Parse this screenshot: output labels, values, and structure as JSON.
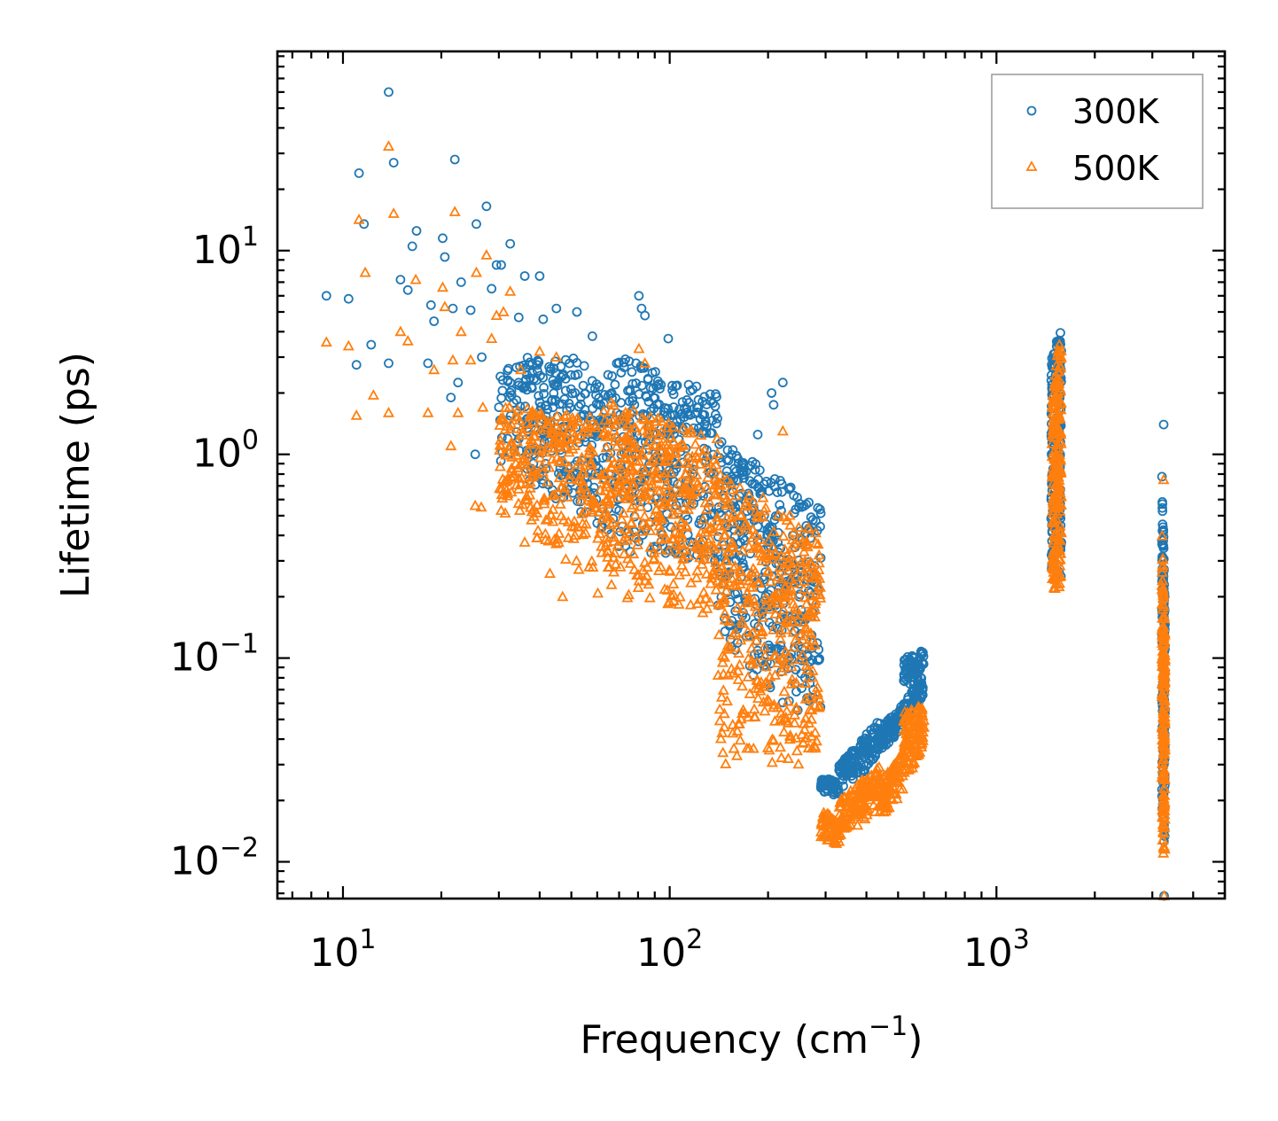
{
  "chart_data": {
    "type": "scatter",
    "title": "",
    "xscale": "log",
    "yscale": "log",
    "xlabel": "Frequency (cm",
    "xlabel_sup": "−1",
    "xlabel_suffix": ")",
    "ylabel": "Lifetime (ps)",
    "xlim": [
      6.3,
      5000
    ],
    "ylim": [
      0.0066,
      95
    ],
    "x_ticks": [
      {
        "value": 10,
        "base": "10",
        "exp": "1"
      },
      {
        "value": 100,
        "base": "10",
        "exp": "2"
      },
      {
        "value": 1000,
        "base": "10",
        "exp": "3"
      }
    ],
    "y_ticks": [
      {
        "value": 0.01,
        "base": "10",
        "exp": "−2"
      },
      {
        "value": 0.1,
        "base": "10",
        "exp": "−1"
      },
      {
        "value": 1,
        "base": "10",
        "exp": "0"
      },
      {
        "value": 10,
        "base": "10",
        "exp": "1"
      }
    ],
    "legend_position": "top-right",
    "series": [
      {
        "name": "300K",
        "marker": "circle",
        "color": "#1f77b4",
        "points": [
          [
            8.9,
            6.0
          ],
          [
            10.4,
            5.8
          ],
          [
            11.0,
            2.75
          ],
          [
            11.2,
            24.0
          ],
          [
            11.6,
            13.5
          ],
          [
            12.2,
            3.45
          ],
          [
            13.8,
            2.8
          ],
          [
            13.8,
            60.0
          ],
          [
            14.3,
            27.0
          ],
          [
            15.0,
            7.2
          ],
          [
            15.8,
            6.4
          ],
          [
            16.3,
            10.5
          ],
          [
            16.8,
            12.5
          ],
          [
            18.2,
            2.8
          ],
          [
            18.6,
            5.4
          ],
          [
            19.0,
            4.5
          ],
          [
            20.2,
            11.5
          ],
          [
            20.5,
            9.3
          ],
          [
            21.4,
            1.9
          ],
          [
            21.7,
            5.2
          ],
          [
            22.0,
            28.0
          ],
          [
            22.5,
            2.25
          ],
          [
            23.0,
            7.0
          ],
          [
            24.6,
            5.1
          ],
          [
            25.4,
            1.0
          ],
          [
            25.6,
            13.5
          ],
          [
            26.6,
            3.0
          ],
          [
            27.5,
            16.5
          ],
          [
            28.5,
            6.5
          ],
          [
            29.5,
            8.5
          ],
          [
            30.5,
            8.5
          ],
          [
            32.5,
            10.8
          ],
          [
            34.5,
            4.7
          ],
          [
            36.0,
            7.5
          ],
          [
            40.0,
            7.5
          ],
          [
            41.0,
            4.6
          ],
          [
            45.0,
            5.2
          ],
          [
            52.0,
            5.0
          ],
          [
            58.0,
            3.8
          ],
          [
            68.0,
            2.2
          ],
          [
            80.5,
            6.0
          ],
          [
            82.0,
            5.2
          ],
          [
            84.0,
            4.8
          ],
          [
            99.0,
            3.7
          ],
          [
            140.0,
            1.5
          ],
          [
            186.0,
            1.25
          ],
          [
            205.0,
            2.0
          ],
          [
            208.0,
            1.75
          ],
          [
            222.0,
            2.25
          ],
          [
            280.0,
            0.47
          ],
          [
            290.0,
            0.31
          ],
          [
            3250.0,
            1.4
          ],
          [
            3260.0,
            0.0068
          ]
        ],
        "bands": [
          {
            "x": [
              30,
              60
            ],
            "y_upper": [
              3.0,
              3.0
            ],
            "y_lower": [
              0.9,
              0.45
            ],
            "count": 260
          },
          {
            "x": [
              60,
              140
            ],
            "y_upper": [
              3.3,
              2.0
            ],
            "y_lower": [
              0.35,
              0.28
            ],
            "count": 380
          },
          {
            "x": [
              140,
              290
            ],
            "y_upper": [
              1.2,
              0.55
            ],
            "y_lower": [
              0.12,
              0.04
            ],
            "count": 380
          },
          {
            "x": [
              290,
              330
            ],
            "y_upper": [
              0.026,
              0.025
            ],
            "y_lower": [
              0.022,
              0.021
            ],
            "count": 60
          },
          {
            "x": [
              330,
              440
            ],
            "y_upper": [
              0.03,
              0.05
            ],
            "y_lower": [
              0.022,
              0.032
            ],
            "count": 140
          },
          {
            "x": [
              440,
              520
            ],
            "y_upper": [
              0.045,
              0.06
            ],
            "y_lower": [
              0.035,
              0.045
            ],
            "count": 100
          },
          {
            "x": [
              520,
              600
            ],
            "y_upper": [
              0.1,
              0.11
            ],
            "y_lower": [
              0.05,
              0.065
            ],
            "count": 120
          },
          {
            "x": [
              1470,
              1580
            ],
            "y_upper": [
              2.9,
              4.6
            ],
            "y_lower": [
              0.25,
              0.25
            ],
            "count": 220
          },
          {
            "x": [
              3210,
              3280
            ],
            "y_upper": [
              0.9,
              0.2
            ],
            "y_lower": [
              0.012,
              0.012
            ],
            "count": 180
          }
        ]
      },
      {
        "name": "500K",
        "marker": "triangle",
        "color": "#ff7f0e",
        "points": [
          [
            8.9,
            3.55
          ],
          [
            10.4,
            3.4
          ],
          [
            11.0,
            1.55
          ],
          [
            11.2,
            14.2
          ],
          [
            11.7,
            7.8
          ],
          [
            12.4,
            1.95
          ],
          [
            13.8,
            1.6
          ],
          [
            13.8,
            32.5
          ],
          [
            14.3,
            15.2
          ],
          [
            15.0,
            4.0
          ],
          [
            15.8,
            3.6
          ],
          [
            16.7,
            7.2
          ],
          [
            18.2,
            1.6
          ],
          [
            19.0,
            2.6
          ],
          [
            20.2,
            6.6
          ],
          [
            20.5,
            5.3
          ],
          [
            21.4,
            1.1
          ],
          [
            21.7,
            2.9
          ],
          [
            22.0,
            15.5
          ],
          [
            22.5,
            1.6
          ],
          [
            23.0,
            4.0
          ],
          [
            24.6,
            2.9
          ],
          [
            25.6,
            7.8
          ],
          [
            26.8,
            1.7
          ],
          [
            27.5,
            9.5
          ],
          [
            28.5,
            3.7
          ],
          [
            29.5,
            4.8
          ],
          [
            31.0,
            5.0
          ],
          [
            32.5,
            6.3
          ],
          [
            35.0,
            2.6
          ],
          [
            40.0,
            3.2
          ],
          [
            45.0,
            3.0
          ],
          [
            25.4,
            0.56
          ],
          [
            26.5,
            0.55
          ],
          [
            30.5,
            0.53
          ],
          [
            36.0,
            0.37
          ],
          [
            43.0,
            0.26
          ],
          [
            47.0,
            0.2
          ],
          [
            80.5,
            3.3
          ],
          [
            84.0,
            2.8
          ],
          [
            222.0,
            1.3
          ],
          [
            280.0,
            0.26
          ],
          [
            3250.0,
            0.75
          ],
          [
            3260.0,
            0.0068
          ]
        ],
        "bands": [
          {
            "x": [
              30,
              60
            ],
            "y_upper": [
              1.8,
              1.5
            ],
            "y_lower": [
              0.5,
              0.23
            ],
            "count": 260
          },
          {
            "x": [
              60,
              140
            ],
            "y_upper": [
              1.9,
              1.2
            ],
            "y_lower": [
              0.19,
              0.16
            ],
            "count": 420
          },
          {
            "x": [
              140,
              290
            ],
            "y_upper": [
              0.9,
              0.4
            ],
            "y_lower": [
              0.03,
              0.03
            ],
            "count": 420
          },
          {
            "x": [
              290,
              330
            ],
            "y_upper": [
              0.018,
              0.016
            ],
            "y_lower": [
              0.013,
              0.012
            ],
            "count": 60
          },
          {
            "x": [
              330,
              440
            ],
            "y_upper": [
              0.02,
              0.03
            ],
            "y_lower": [
              0.013,
              0.018
            ],
            "count": 140
          },
          {
            "x": [
              440,
              520
            ],
            "y_upper": [
              0.025,
              0.035
            ],
            "y_lower": [
              0.016,
              0.022
            ],
            "count": 100
          },
          {
            "x": [
              520,
              600
            ],
            "y_upper": [
              0.055,
              0.06
            ],
            "y_lower": [
              0.026,
              0.033
            ],
            "count": 120
          },
          {
            "x": [
              1480,
              1580
            ],
            "y_upper": [
              2.0,
              4.3
            ],
            "y_lower": [
              0.21,
              0.2
            ],
            "count": 220
          },
          {
            "x": [
              3210,
              3280
            ],
            "y_upper": [
              0.45,
              0.12
            ],
            "y_lower": [
              0.011,
              0.011
            ],
            "count": 180
          }
        ]
      }
    ]
  }
}
